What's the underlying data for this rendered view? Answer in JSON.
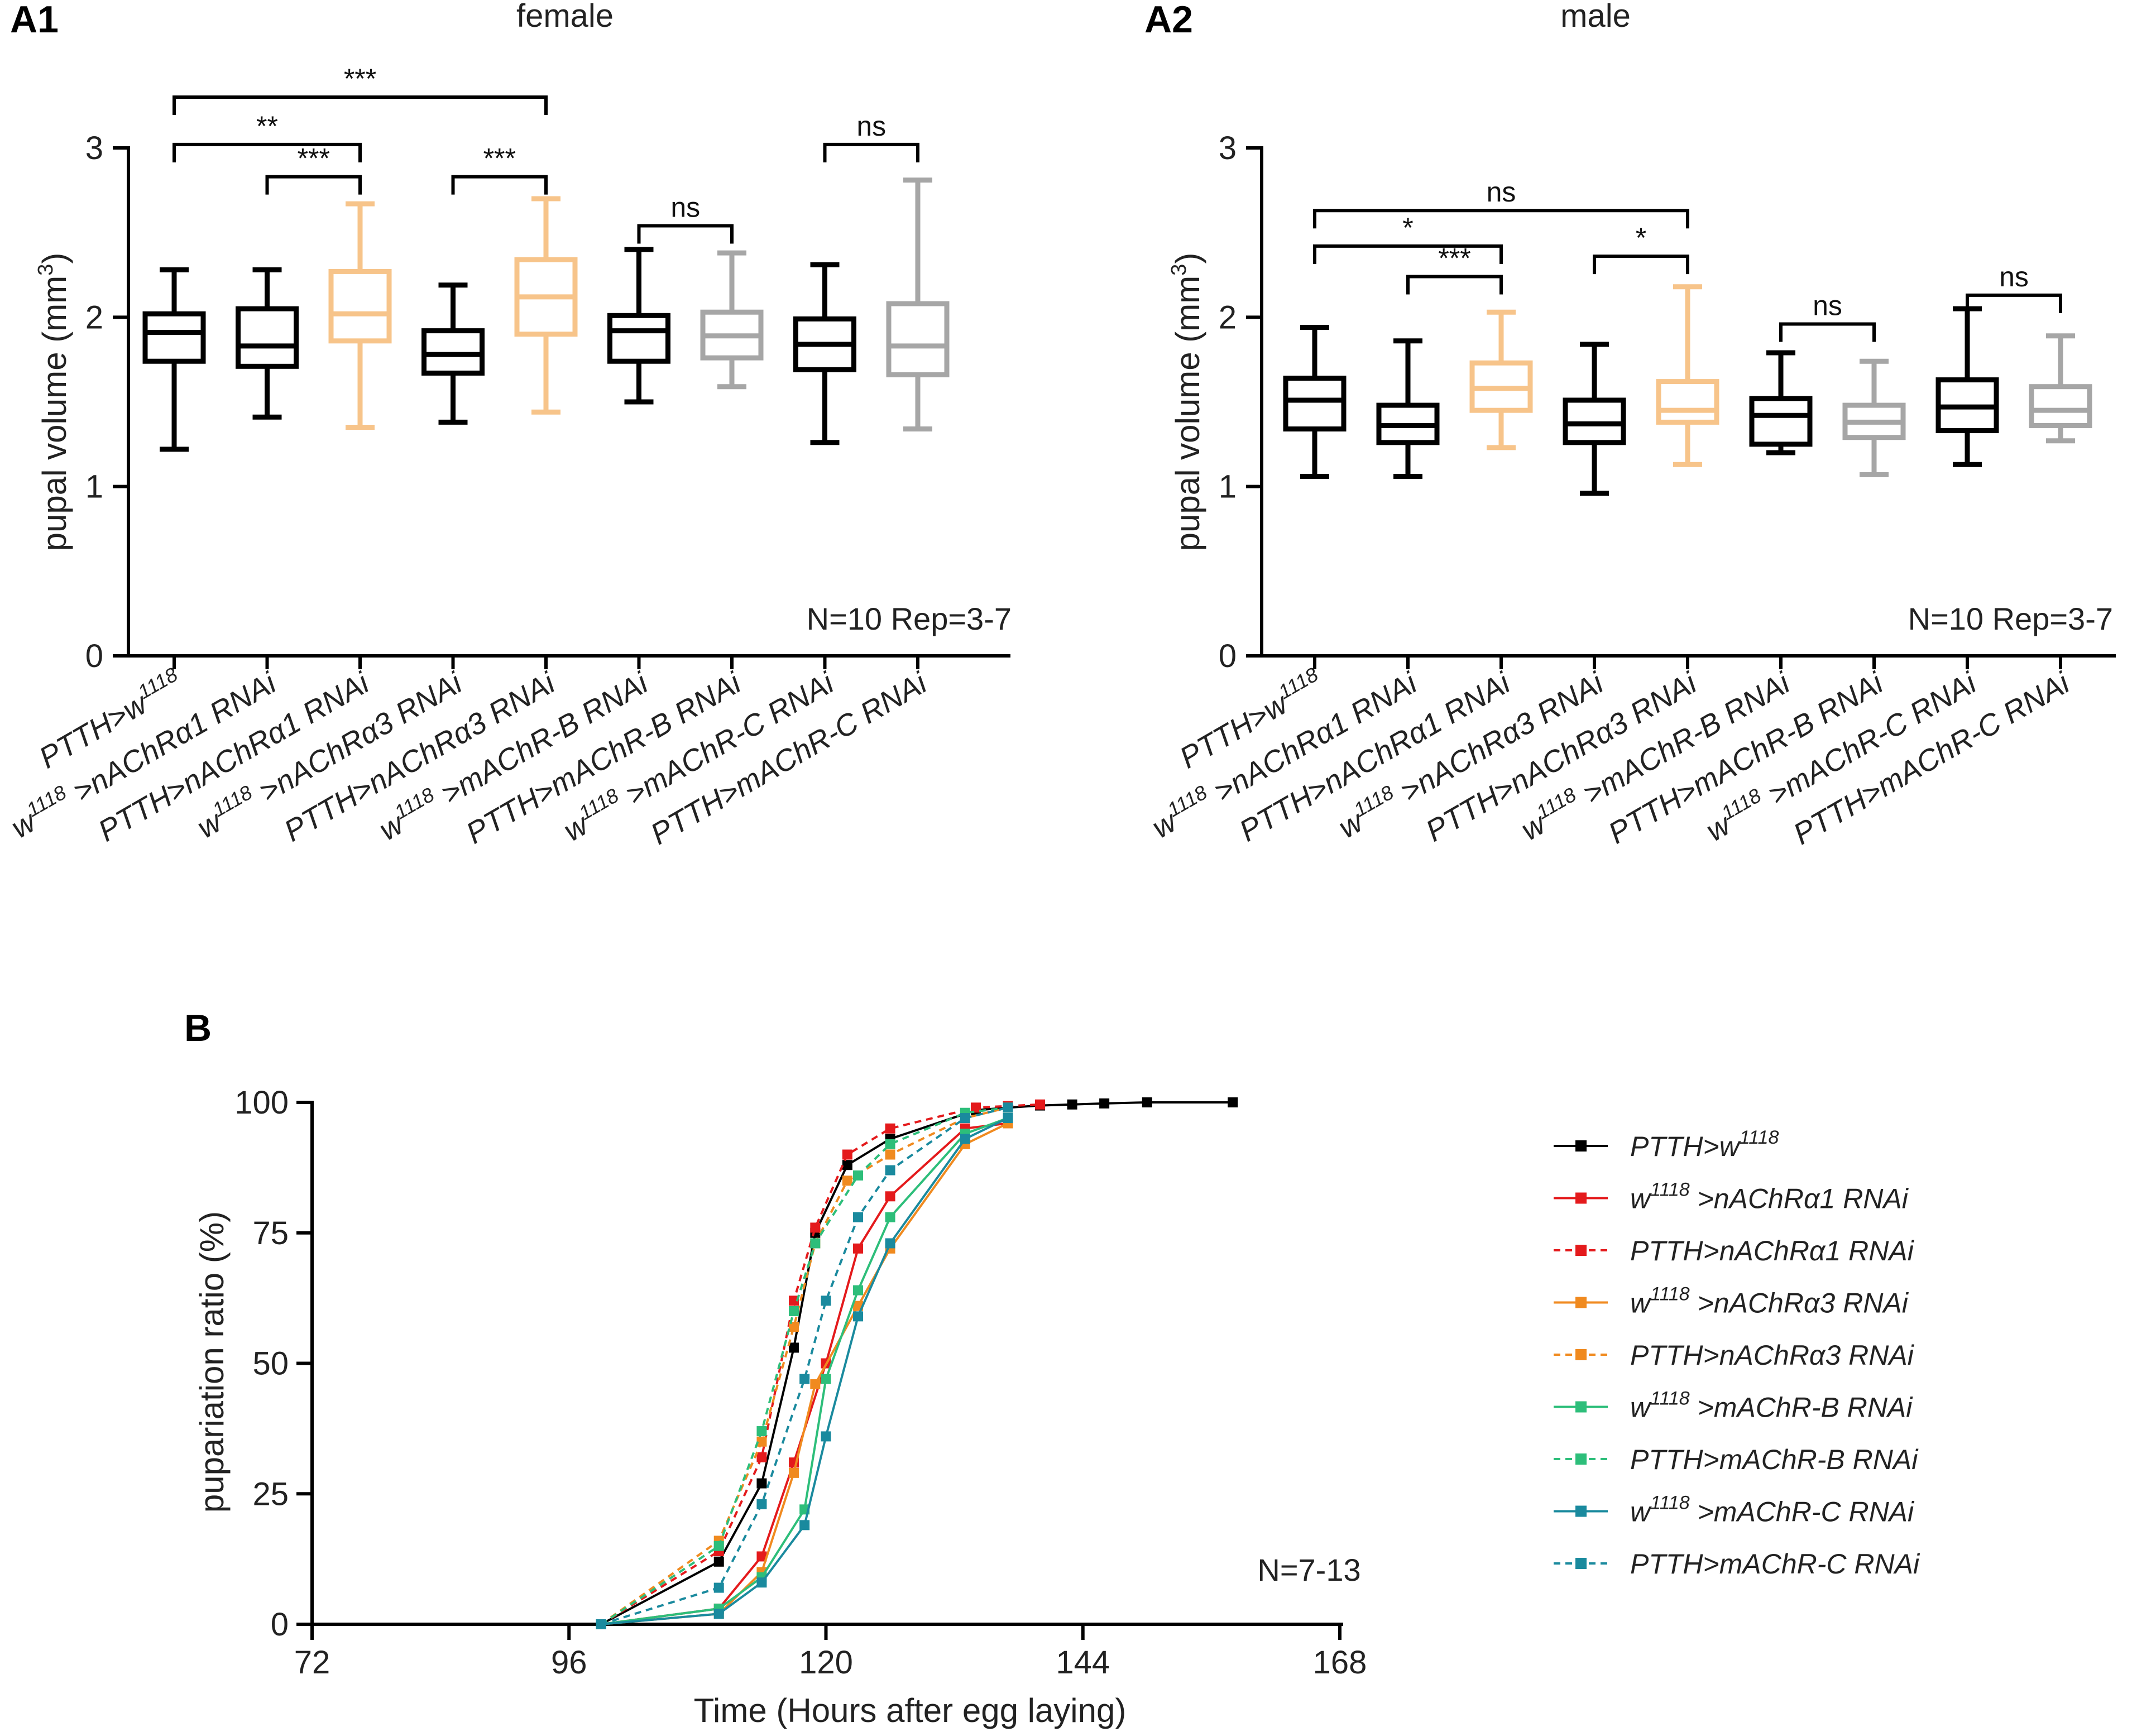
{
  "panel_labels": {
    "a1": "A1",
    "a2": "A2",
    "b": "B"
  },
  "colors": {
    "black": "#000000",
    "orange": "#F7C48A",
    "grey": "#A6A6A6",
    "red": "#E41A1C",
    "orange_line": "#F08A1F",
    "green": "#2DBE7A",
    "teal": "#1A8A9E"
  },
  "chart_data": [
    {
      "id": "A1",
      "type": "box",
      "title": "female",
      "ylabel_main": "pupal volume (mm",
      "ylabel_sup": "3",
      "ylabel_end": ")",
      "ylim": [
        0,
        3
      ],
      "yticks": [
        0,
        1,
        2,
        3
      ],
      "annotation": "N=10 Rep=3-7",
      "categories": [
        {
          "pre": "PTTH>w",
          "sup": "1118",
          "post": ""
        },
        {
          "pre": "w",
          "sup": "1118",
          "post": " >nAChRα1 RNAi"
        },
        {
          "pre": "PTTH>nAChRα1 RNAi",
          "sup": "",
          "post": ""
        },
        {
          "pre": "w",
          "sup": "1118",
          "post": " >nAChRα3 RNAi"
        },
        {
          "pre": "PTTH>nAChRα3 RNAi",
          "sup": "",
          "post": ""
        },
        {
          "pre": "w",
          "sup": "1118",
          "post": " >mAChR-B RNAi"
        },
        {
          "pre": "PTTH>mAChR-B RNAi",
          "sup": "",
          "post": ""
        },
        {
          "pre": "w",
          "sup": "1118",
          "post": " >mAChR-C RNAi"
        },
        {
          "pre": "PTTH>mAChR-C RNAi",
          "sup": "",
          "post": ""
        }
      ],
      "boxes": [
        {
          "min": 1.22,
          "q1": 1.74,
          "median": 1.91,
          "q3": 2.02,
          "max": 2.28,
          "color": "black"
        },
        {
          "min": 1.41,
          "q1": 1.71,
          "median": 1.83,
          "q3": 2.05,
          "max": 2.28,
          "color": "black"
        },
        {
          "min": 1.35,
          "q1": 1.86,
          "median": 2.02,
          "q3": 2.27,
          "max": 2.67,
          "color": "orange"
        },
        {
          "min": 1.38,
          "q1": 1.67,
          "median": 1.78,
          "q3": 1.92,
          "max": 2.19,
          "color": "black"
        },
        {
          "min": 1.44,
          "q1": 1.9,
          "median": 2.12,
          "q3": 2.34,
          "max": 2.7,
          "color": "orange"
        },
        {
          "min": 1.5,
          "q1": 1.74,
          "median": 1.92,
          "q3": 2.01,
          "max": 2.4,
          "color": "black"
        },
        {
          "min": 1.59,
          "q1": 1.76,
          "median": 1.89,
          "q3": 2.03,
          "max": 2.38,
          "color": "grey"
        },
        {
          "min": 1.26,
          "q1": 1.69,
          "median": 1.84,
          "q3": 1.99,
          "max": 2.31,
          "color": "black"
        },
        {
          "min": 1.34,
          "q1": 1.66,
          "median": 1.83,
          "q3": 2.08,
          "max": 2.81,
          "color": "grey"
        }
      ],
      "brackets": [
        {
          "from": 0,
          "to": 4,
          "y": 3.3,
          "label": "***"
        },
        {
          "from": 0,
          "to": 2,
          "y": 3.02,
          "label": "**"
        },
        {
          "from": 1,
          "to": 2,
          "y": 2.83,
          "label": "***"
        },
        {
          "from": 3,
          "to": 4,
          "y": 2.83,
          "label": "***"
        },
        {
          "from": 5,
          "to": 6,
          "y": 2.54,
          "label": "ns"
        },
        {
          "from": 7,
          "to": 8,
          "y": 3.02,
          "label": "ns"
        }
      ]
    },
    {
      "id": "A2",
      "type": "box",
      "title": "male",
      "ylabel_main": "pupal volume (mm",
      "ylabel_sup": "3",
      "ylabel_end": ")",
      "ylim": [
        0,
        3
      ],
      "yticks": [
        0,
        1,
        2,
        3
      ],
      "annotation": "N=10 Rep=3-7",
      "categories": [
        {
          "pre": "PTTH>w",
          "sup": "1118",
          "post": ""
        },
        {
          "pre": "w",
          "sup": "1118",
          "post": " >nAChRα1 RNAi"
        },
        {
          "pre": "PTTH>nAChRα1 RNAi",
          "sup": "",
          "post": ""
        },
        {
          "pre": "w",
          "sup": "1118",
          "post": " >nAChRα3 RNAi"
        },
        {
          "pre": "PTTH>nAChRα3 RNAi",
          "sup": "",
          "post": ""
        },
        {
          "pre": "w",
          "sup": "1118",
          "post": " >mAChR-B RNAi"
        },
        {
          "pre": "PTTH>mAChR-B RNAi",
          "sup": "",
          "post": ""
        },
        {
          "pre": "w",
          "sup": "1118",
          "post": " >mAChR-C RNAi"
        },
        {
          "pre": "PTTH>mAChR-C RNAi",
          "sup": "",
          "post": ""
        }
      ],
      "boxes": [
        {
          "min": 1.06,
          "q1": 1.34,
          "median": 1.51,
          "q3": 1.64,
          "max": 1.94,
          "color": "black"
        },
        {
          "min": 1.06,
          "q1": 1.26,
          "median": 1.36,
          "q3": 1.48,
          "max": 1.86,
          "color": "black"
        },
        {
          "min": 1.23,
          "q1": 1.45,
          "median": 1.58,
          "q3": 1.73,
          "max": 2.03,
          "color": "orange"
        },
        {
          "min": 0.96,
          "q1": 1.26,
          "median": 1.37,
          "q3": 1.51,
          "max": 1.84,
          "color": "black"
        },
        {
          "min": 1.13,
          "q1": 1.38,
          "median": 1.45,
          "q3": 1.62,
          "max": 2.18,
          "color": "orange"
        },
        {
          "min": 1.2,
          "q1": 1.25,
          "median": 1.42,
          "q3": 1.52,
          "max": 1.79,
          "color": "black"
        },
        {
          "min": 1.07,
          "q1": 1.29,
          "median": 1.38,
          "q3": 1.48,
          "max": 1.74,
          "color": "grey"
        },
        {
          "min": 1.13,
          "q1": 1.33,
          "median": 1.47,
          "q3": 1.63,
          "max": 2.05,
          "color": "black"
        },
        {
          "min": 1.27,
          "q1": 1.36,
          "median": 1.45,
          "q3": 1.59,
          "max": 1.89,
          "color": "grey"
        }
      ],
      "brackets": [
        {
          "from": 0,
          "to": 4,
          "y": 2.63,
          "label": "ns"
        },
        {
          "from": 0,
          "to": 2,
          "y": 2.42,
          "label": "*"
        },
        {
          "from": 1,
          "to": 2,
          "y": 2.24,
          "label": "***"
        },
        {
          "from": 3,
          "to": 4,
          "y": 2.36,
          "label": "*"
        },
        {
          "from": 5,
          "to": 6,
          "y": 1.96,
          "label": "ns"
        },
        {
          "from": 7,
          "to": 8,
          "y": 2.13,
          "label": "ns"
        }
      ]
    },
    {
      "id": "B",
      "type": "line",
      "xlabel": "Time (Hours after egg laying)",
      "ylabel": "pupariation ratio (%)",
      "xlim": [
        72,
        168
      ],
      "ylim": [
        0,
        100
      ],
      "xticks": [
        72,
        96,
        120,
        144,
        168
      ],
      "yticks": [
        0,
        25,
        50,
        75,
        100
      ],
      "annotation": "N=7-13",
      "series": [
        {
          "pre": "PTTH>w",
          "sup": "1118",
          "post": "",
          "color": "black",
          "dashed": false,
          "x": [
            99,
            110,
            114,
            117,
            119,
            122,
            126,
            134,
            137,
            140,
            143,
            146,
            150,
            158
          ],
          "y": [
            0,
            12,
            27,
            53,
            75,
            88,
            93,
            98.5,
            99,
            99.4,
            99.6,
            99.8,
            100,
            100
          ]
        },
        {
          "pre": "w",
          "sup": "1118",
          "post": " >nAChRα1 RNAi",
          "color": "red",
          "dashed": false,
          "x": [
            99,
            110,
            114,
            117,
            120,
            123,
            126,
            133,
            137
          ],
          "y": [
            0,
            3,
            13,
            31,
            50,
            72,
            82,
            95,
            96
          ]
        },
        {
          "pre": "PTTH>nAChRα1 RNAi",
          "sup": "",
          "post": "",
          "color": "red",
          "dashed": true,
          "x": [
            99,
            110,
            114,
            117,
            119,
            122,
            126,
            134,
            137,
            140
          ],
          "y": [
            0,
            14,
            32,
            62,
            76,
            90,
            95,
            99,
            99.3,
            99.6
          ]
        },
        {
          "pre": "w",
          "sup": "1118",
          "post": " >nAChRα3 RNAi",
          "color": "orange_line",
          "dashed": false,
          "x": [
            99,
            110,
            114,
            117,
            119,
            123,
            126,
            133,
            137
          ],
          "y": [
            0,
            2,
            10,
            29,
            46,
            61,
            72,
            92,
            96
          ]
        },
        {
          "pre": "PTTH>nAChRα3 RNAi",
          "sup": "",
          "post": "",
          "color": "orange_line",
          "dashed": true,
          "x": [
            99,
            110,
            114,
            117,
            119,
            122,
            126,
            133,
            137
          ],
          "y": [
            0,
            16,
            35,
            57,
            73,
            85,
            90,
            97,
            99
          ]
        },
        {
          "pre": "w",
          "sup": "1118",
          "post": " >mAChR-B RNAi",
          "color": "green",
          "dashed": false,
          "x": [
            99,
            110,
            114,
            118,
            120,
            123,
            126,
            133,
            137
          ],
          "y": [
            0,
            3,
            9,
            22,
            47,
            64,
            78,
            94,
            97
          ]
        },
        {
          "pre": "PTTH>mAChR-B RNAi",
          "sup": "",
          "post": "",
          "color": "green",
          "dashed": true,
          "x": [
            99,
            110,
            114,
            117,
            119,
            123,
            126,
            133,
            137
          ],
          "y": [
            0,
            15,
            37,
            60,
            73,
            86,
            92,
            98,
            99
          ]
        },
        {
          "pre": "w",
          "sup": "1118",
          "post": " >mAChR-C RNAi",
          "color": "teal",
          "dashed": false,
          "x": [
            99,
            110,
            114,
            118,
            120,
            123,
            126,
            133,
            137
          ],
          "y": [
            0,
            2,
            8,
            19,
            36,
            59,
            73,
            93,
            97
          ]
        },
        {
          "pre": "PTTH>mAChR-C RNAi",
          "sup": "",
          "post": "",
          "color": "teal",
          "dashed": true,
          "x": [
            99,
            110,
            114,
            118,
            120,
            123,
            126,
            133,
            137
          ],
          "y": [
            0,
            7,
            23,
            47,
            62,
            78,
            87,
            97,
            99
          ]
        }
      ]
    }
  ]
}
